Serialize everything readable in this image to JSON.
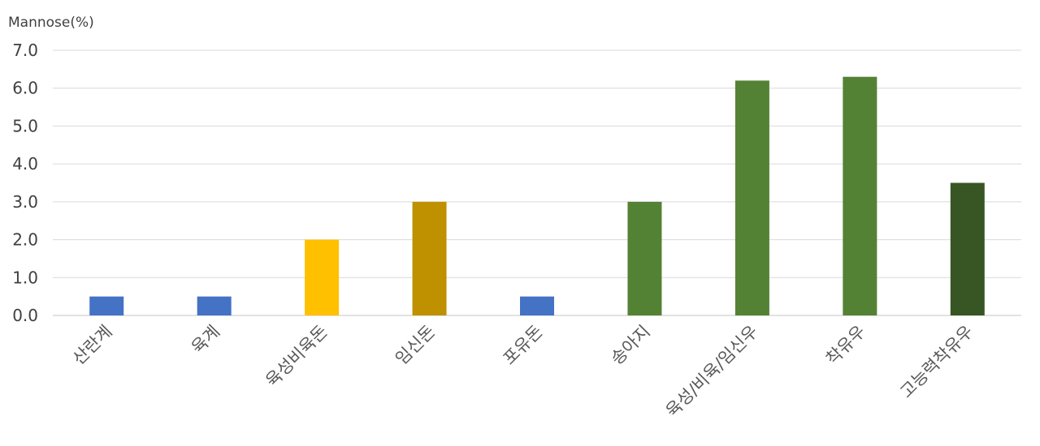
{
  "chart_data": {
    "type": "bar",
    "ylabel": "Mannose(%)",
    "ylim": [
      0,
      7
    ],
    "yticks": [
      "0.0",
      "1.0",
      "2.0",
      "3.0",
      "4.0",
      "5.0",
      "6.0",
      "7.0"
    ],
    "grid": true,
    "legend": "none",
    "categories": [
      "산란계",
      "육계",
      "육성비육돈",
      "임신돈",
      "포유돈",
      "송아지",
      "육성/비육/임신우",
      "착유우",
      "고능력착유우"
    ],
    "values": [
      0.5,
      0.5,
      2.0,
      3.0,
      0.5,
      3.0,
      6.2,
      6.3,
      3.5
    ],
    "colors": [
      "#4472c4",
      "#4472c4",
      "#ffc000",
      "#bf9000",
      "#4472c4",
      "#548235",
      "#548235",
      "#548235",
      "#375623"
    ]
  }
}
